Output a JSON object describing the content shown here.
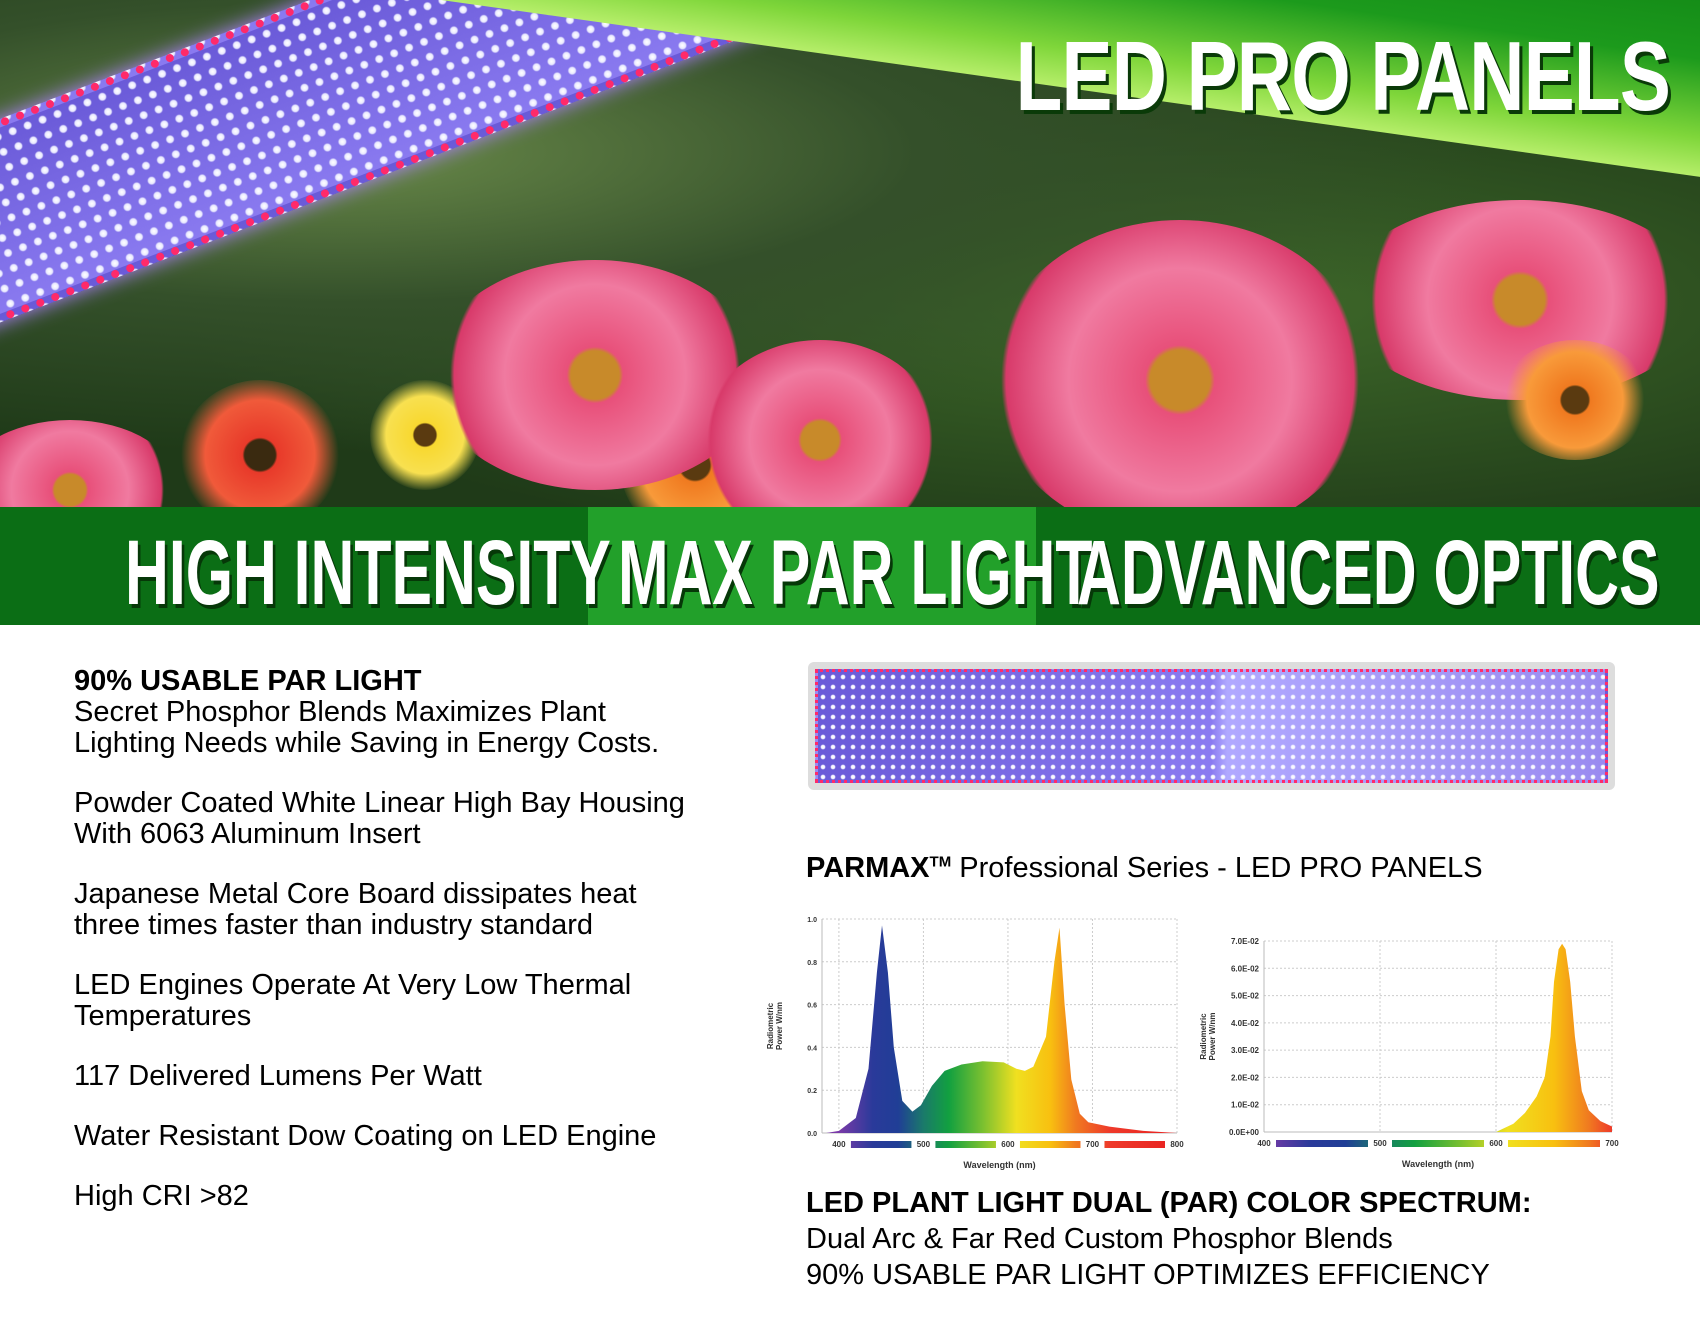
{
  "hero": {
    "title": "LED PRO PANELS"
  },
  "band": {
    "items": [
      "HIGH INTENSITY",
      "MAX PAR LIGHT",
      "ADVANCED OPTICS"
    ],
    "colors": {
      "dark": "#0b6e15",
      "light": "#22a02a"
    }
  },
  "features": [
    {
      "heading": "90% USABLE PAR LIGHT",
      "lines": [
        "Secret Phosphor Blends Maximizes Plant",
        "Lighting Needs while Saving in Energy Costs."
      ]
    },
    {
      "lines": [
        "Powder Coated White Linear High Bay Housing",
        "With 6063 Aluminum Insert"
      ]
    },
    {
      "lines": [
        "Japanese Metal Core Board dissipates heat",
        "three times faster than industry standard"
      ]
    },
    {
      "lines": [
        "LED Engines Operate At Very Low Thermal",
        "Temperatures"
      ]
    },
    {
      "lines": [
        "117 Delivered Lumens Per Watt"
      ]
    },
    {
      "lines": [
        "Water Resistant Dow Coating on LED Engine"
      ]
    },
    {
      "lines": [
        "High CRI >82"
      ]
    }
  ],
  "series_title": {
    "brand": "PARMAX",
    "tm": "TM",
    "rest": " Professional Series - LED PRO PANELS"
  },
  "bottom": {
    "heading": "LED PLANT LIGHT DUAL (PAR) COLOR SPECTRUM:",
    "line1": "Dual Arc & Far Red Custom Phosphor Blends",
    "line2": "90% USABLE PAR LIGHT OPTIMIZES EFFICIENCY"
  },
  "chart_data": [
    {
      "type": "area",
      "xlabel": "Wavelength (nm)",
      "ylabel": [
        "Radiometric",
        "Power W/nm"
      ],
      "xlim": [
        380,
        800
      ],
      "ylim": [
        0,
        1.0
      ],
      "xticks": [
        "400",
        "500",
        "600",
        "700",
        "800"
      ],
      "yticks": [
        "0.0",
        "0.2",
        "0.4",
        "0.6",
        "0.8",
        "1.0"
      ],
      "grid": true,
      "x": [
        385,
        400,
        420,
        435,
        445,
        451,
        458,
        465,
        475,
        487,
        497,
        510,
        525,
        545,
        570,
        595,
        610,
        620,
        630,
        645,
        655,
        661,
        667,
        675,
        685,
        695,
        720,
        760,
        800
      ],
      "y": [
        0,
        0.01,
        0.07,
        0.3,
        0.75,
        0.97,
        0.75,
        0.4,
        0.15,
        0.1,
        0.13,
        0.22,
        0.29,
        0.32,
        0.335,
        0.33,
        0.3,
        0.29,
        0.31,
        0.45,
        0.8,
        0.96,
        0.6,
        0.25,
        0.09,
        0.05,
        0.03,
        0.01,
        0
      ]
    },
    {
      "type": "area",
      "xlabel": "Wavelength (nm)",
      "ylabel": [
        "Radiometric",
        "Power W/nm"
      ],
      "xlim": [
        400,
        700
      ],
      "ylim": [
        0,
        0.07
      ],
      "xticks": [
        "400",
        "500",
        "600",
        "700"
      ],
      "yticks": [
        "0.0E+00",
        "1.0E-02",
        "2.0E-02",
        "3.0E-02",
        "4.0E-02",
        "5.0E-02",
        "6.0E-02",
        "7.0E-02"
      ],
      "grid": true,
      "x": [
        600,
        615,
        625,
        635,
        642,
        647,
        650,
        654,
        657,
        660,
        664,
        668,
        674,
        680,
        690,
        700
      ],
      "y": [
        0,
        0.003,
        0.007,
        0.013,
        0.02,
        0.035,
        0.055,
        0.067,
        0.069,
        0.067,
        0.055,
        0.035,
        0.015,
        0.008,
        0.004,
        0.002
      ]
    }
  ]
}
